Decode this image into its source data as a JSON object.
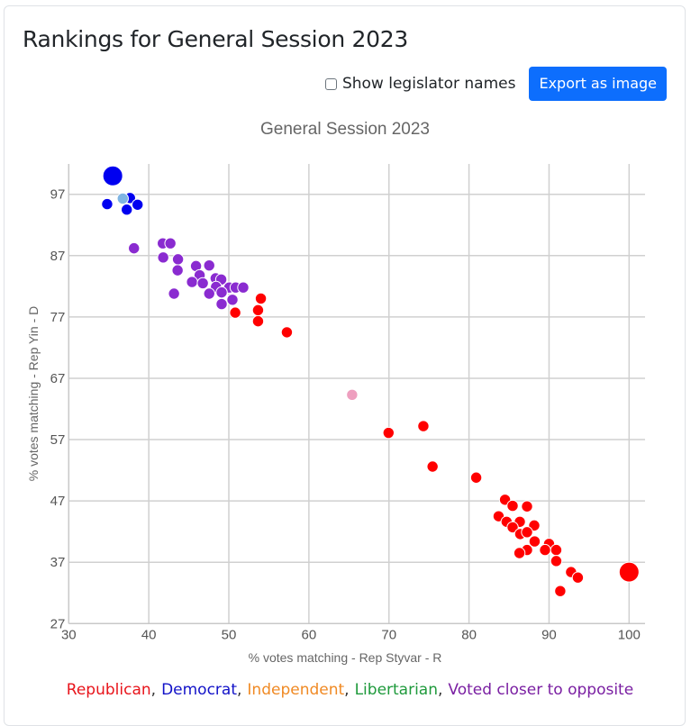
{
  "page": {
    "title": "Rankings for General Session 2023",
    "show_names_label": "Show legislator names",
    "show_names_checked": false,
    "export_button_label": "Export as image"
  },
  "legend": [
    {
      "label": "Republican",
      "color": "#e8141b"
    },
    {
      "label": "Democrat",
      "color": "#1212c8"
    },
    {
      "label": "Independent",
      "color": "#f08a24"
    },
    {
      "label": "Libertarian",
      "color": "#1f9a3c"
    },
    {
      "label": "Voted closer to opposite",
      "color": "#7a1fa2"
    }
  ],
  "legend_separator": ",",
  "chart_data": {
    "type": "scatter",
    "title": "General Session 2023",
    "xlabel": "% votes matching - Rep Styvar - R",
    "ylabel": "% votes matching - Rep Yin - D",
    "xlim": [
      30,
      102
    ],
    "ylim": [
      27,
      102
    ],
    "xticks": [
      30,
      40,
      50,
      60,
      70,
      80,
      90,
      100
    ],
    "yticks": [
      27,
      37,
      47,
      57,
      67,
      77,
      87,
      97
    ],
    "grid": true,
    "colors": {
      "democrat": "#0000f0",
      "republican": "#ff0000",
      "opposite": "#8a2bd0",
      "highlight_democrat": "#7fb5e3",
      "highlight_republican": "#ee9fbf"
    },
    "series": [
      {
        "name": "Democrat",
        "color_key": "democrat",
        "points": [
          [
            37.65,
            96.4
          ],
          [
            34.8,
            95.4
          ],
          [
            38.6,
            95.3
          ],
          [
            37.25,
            94.5
          ]
        ]
      },
      {
        "name": "Democrat (reference)",
        "color_key": "democrat",
        "large": true,
        "points": [
          [
            35.5,
            100
          ]
        ]
      },
      {
        "name": "Democrat (highlight)",
        "color_key": "highlight_democrat",
        "points": [
          [
            36.75,
            96.3
          ]
        ]
      },
      {
        "name": "Voted closer to opposite",
        "color_key": "opposite",
        "points": [
          [
            38.15,
            88.2
          ],
          [
            41.75,
            89.0
          ],
          [
            42.7,
            89.0
          ],
          [
            41.8,
            86.7
          ],
          [
            43.65,
            86.4
          ],
          [
            43.6,
            84.6
          ],
          [
            45.9,
            85.3
          ],
          [
            47.55,
            85.4
          ],
          [
            46.35,
            83.8
          ],
          [
            45.4,
            82.7
          ],
          [
            46.75,
            82.5
          ],
          [
            48.35,
            83.3
          ],
          [
            49.05,
            83.1
          ],
          [
            48.4,
            81.9
          ],
          [
            50.05,
            81.8
          ],
          [
            50.85,
            81.8
          ],
          [
            51.8,
            81.8
          ],
          [
            43.15,
            80.8
          ],
          [
            47.55,
            80.8
          ],
          [
            49.1,
            81.0
          ],
          [
            50.45,
            79.8
          ],
          [
            49.1,
            79.1
          ]
        ]
      },
      {
        "name": "Republican",
        "color_key": "republican",
        "points": [
          [
            50.8,
            77.7
          ],
          [
            54.0,
            80.0
          ],
          [
            53.65,
            78.1
          ],
          [
            53.65,
            76.3
          ],
          [
            57.25,
            74.5
          ],
          [
            69.95,
            58.1
          ],
          [
            74.3,
            59.2
          ],
          [
            75.45,
            52.6
          ],
          [
            80.9,
            50.8
          ],
          [
            84.5,
            47.2
          ],
          [
            85.45,
            46.2
          ],
          [
            87.25,
            46.1
          ],
          [
            83.7,
            44.5
          ],
          [
            84.7,
            43.6
          ],
          [
            86.35,
            43.6
          ],
          [
            85.45,
            42.7
          ],
          [
            88.15,
            43.0
          ],
          [
            86.4,
            41.6
          ],
          [
            87.25,
            41.9
          ],
          [
            88.2,
            40.4
          ],
          [
            87.25,
            39.0
          ],
          [
            86.3,
            38.5
          ],
          [
            90.0,
            40.0
          ],
          [
            89.5,
            39.0
          ],
          [
            90.9,
            39.0
          ],
          [
            90.9,
            37.2
          ],
          [
            92.75,
            35.4
          ],
          [
            93.6,
            34.5
          ],
          [
            91.4,
            32.3
          ]
        ]
      },
      {
        "name": "Republican (highlight)",
        "color_key": "highlight_republican",
        "points": [
          [
            65.4,
            64.3
          ]
        ]
      },
      {
        "name": "Republican (reference)",
        "color_key": "republican",
        "large": true,
        "points": [
          [
            100,
            35.4
          ]
        ]
      }
    ]
  }
}
